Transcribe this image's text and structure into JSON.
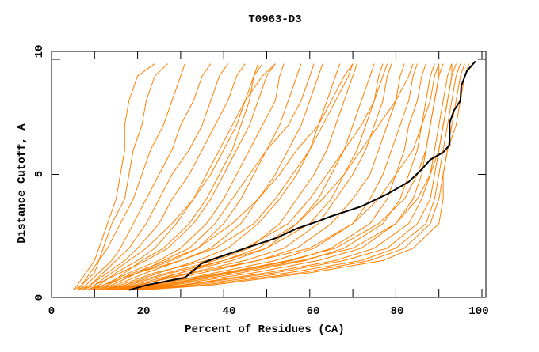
{
  "chart_data": {
    "type": "line",
    "title": "T0963-D3",
    "xlabel": "Percent of Residues (CA)",
    "ylabel": "Distance Cutoff, A",
    "xlim": [
      0,
      101
    ],
    "ylim": [
      0,
      10
    ],
    "x_ticks": [
      "0",
      "20",
      "40",
      "60",
      "80",
      "100"
    ],
    "y_ticks": [
      "0",
      "5",
      "10"
    ],
    "grid": false,
    "colors": {
      "models": "#ff8000",
      "highlight": "#000000"
    },
    "y_levels": [
      0.3,
      0.5,
      1,
      1.5,
      2,
      3,
      4,
      5,
      6,
      7,
      8,
      9,
      9.5
    ],
    "model_series": [
      [
        5,
        6,
        8,
        10,
        11,
        13,
        15,
        16,
        17,
        17,
        18,
        20,
        24
      ],
      [
        6,
        7,
        9,
        11,
        12,
        14,
        17,
        18,
        19,
        21,
        22,
        24,
        27
      ],
      [
        5,
        7,
        10,
        11,
        13,
        16,
        19,
        21,
        23,
        26,
        28,
        30,
        31
      ],
      [
        6,
        8,
        11,
        14,
        16,
        19,
        22,
        25,
        28,
        30,
        33,
        35,
        37
      ],
      [
        7,
        9,
        12,
        15,
        18,
        22,
        25,
        28,
        32,
        35,
        37,
        39,
        41
      ],
      [
        6,
        9,
        13,
        17,
        20,
        25,
        28,
        32,
        35,
        38,
        41,
        43,
        45
      ],
      [
        8,
        11,
        15,
        20,
        24,
        29,
        33,
        37,
        40,
        43,
        45,
        47,
        49
      ],
      [
        7,
        10,
        16,
        22,
        27,
        33,
        37,
        40,
        43,
        46,
        48,
        50,
        52
      ],
      [
        9,
        12,
        18,
        25,
        30,
        36,
        40,
        43,
        46,
        49,
        52,
        53,
        54
      ],
      [
        10,
        14,
        20,
        28,
        34,
        40,
        44,
        47,
        50,
        53,
        55,
        57,
        58
      ],
      [
        10,
        15,
        22,
        30,
        37,
        44,
        48,
        52,
        55,
        58,
        60,
        62,
        63
      ],
      [
        12,
        17,
        25,
        34,
        41,
        48,
        53,
        57,
        60,
        62,
        64,
        66,
        67
      ],
      [
        11,
        17,
        27,
        38,
        46,
        53,
        57,
        61,
        64,
        66,
        68,
        70,
        71
      ],
      [
        13,
        19,
        30,
        42,
        50,
        57,
        62,
        65,
        68,
        70,
        72,
        74,
        75
      ],
      [
        14,
        20,
        32,
        45,
        54,
        62,
        66,
        70,
        73,
        75,
        77,
        78,
        79
      ],
      [
        14,
        22,
        35,
        48,
        57,
        65,
        70,
        74,
        76,
        78,
        80,
        81,
        82
      ],
      [
        15,
        24,
        38,
        52,
        61,
        70,
        74,
        77,
        79,
        81,
        83,
        84,
        85
      ],
      [
        16,
        25,
        41,
        56,
        65,
        74,
        78,
        80,
        82,
        83,
        85,
        86,
        87
      ],
      [
        16,
        27,
        44,
        59,
        68,
        77,
        81,
        83,
        85,
        86,
        87,
        88,
        89
      ],
      [
        17,
        28,
        47,
        62,
        72,
        80,
        84,
        86,
        87,
        88,
        89,
        90,
        91
      ],
      [
        18,
        30,
        50,
        66,
        75,
        83,
        86,
        88,
        89,
        90,
        91,
        92,
        93
      ],
      [
        18,
        31,
        52,
        68,
        78,
        85,
        88,
        89,
        90,
        91,
        92,
        93,
        94
      ],
      [
        19,
        33,
        55,
        72,
        80,
        87,
        89,
        90,
        91,
        92,
        93,
        94,
        95
      ],
      [
        20,
        35,
        58,
        74,
        82,
        88,
        90,
        91,
        92,
        93,
        94,
        95,
        96
      ],
      [
        21,
        37,
        60,
        77,
        84,
        90,
        91,
        91,
        92,
        94,
        95,
        96,
        97
      ],
      [
        9,
        13,
        17,
        21,
        26,
        32,
        36,
        39,
        42,
        44,
        46,
        47,
        48
      ],
      [
        8,
        12,
        20,
        30,
        38,
        47,
        52,
        56,
        60,
        63,
        66,
        69,
        70
      ],
      [
        11,
        16,
        24,
        36,
        45,
        55,
        60,
        64,
        68,
        72,
        75,
        77,
        78
      ],
      [
        12,
        18,
        28,
        40,
        50,
        60,
        65,
        68,
        71,
        73,
        75,
        76,
        77
      ],
      [
        13,
        20,
        33,
        48,
        60,
        70,
        76,
        80,
        84,
        86,
        88,
        89,
        90
      ],
      [
        15,
        23,
        40,
        55,
        66,
        76,
        82,
        85,
        87,
        88,
        89,
        90,
        90
      ],
      [
        17,
        26,
        42,
        58,
        70,
        80,
        85,
        88,
        90,
        91,
        92,
        93,
        93
      ],
      [
        7,
        10,
        14,
        18,
        22,
        28,
        33,
        36,
        39,
        42,
        45,
        49,
        52
      ],
      [
        10,
        14,
        20,
        26,
        32,
        38,
        42,
        46,
        50,
        55,
        58,
        60,
        61
      ],
      [
        9,
        13,
        19,
        27,
        34,
        42,
        48,
        53,
        57,
        62,
        65,
        68,
        70
      ],
      [
        14,
        21,
        30,
        40,
        48,
        57,
        63,
        68,
        72,
        76,
        80,
        83,
        84
      ]
    ],
    "highlight_series": [
      [
        18,
        0.3
      ],
      [
        22,
        0.5
      ],
      [
        31,
        0.8
      ],
      [
        33,
        1.1
      ],
      [
        35,
        1.4
      ],
      [
        40,
        1.7
      ],
      [
        45,
        2
      ],
      [
        52,
        2.4
      ],
      [
        57,
        2.8
      ],
      [
        62,
        3.1
      ],
      [
        65,
        3.3
      ],
      [
        72,
        3.7
      ],
      [
        78,
        4.2
      ],
      [
        83,
        4.7
      ],
      [
        86,
        5.2
      ],
      [
        88,
        5.6
      ],
      [
        91,
        5.9
      ],
      [
        92.5,
        6.2
      ],
      [
        92.5,
        7.1
      ],
      [
        93.5,
        7.6
      ],
      [
        95,
        8
      ],
      [
        95.2,
        8.6
      ],
      [
        96.5,
        9.2
      ],
      [
        98.5,
        9.6
      ]
    ]
  }
}
